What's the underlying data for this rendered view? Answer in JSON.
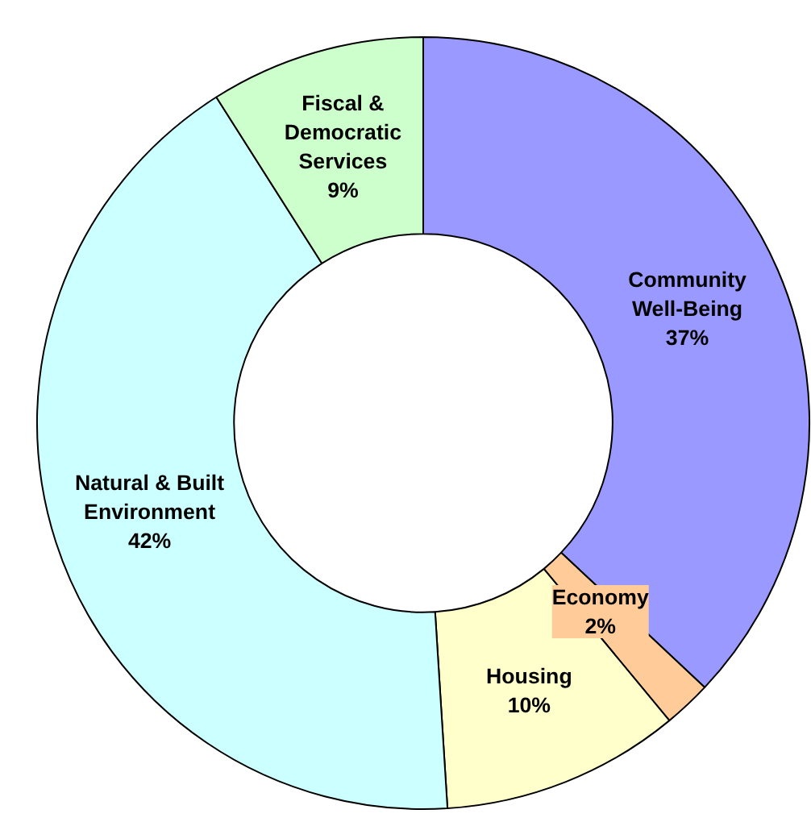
{
  "chart_data": {
    "type": "donut",
    "categories": [
      "Community Well-Being",
      "Economy",
      "Housing",
      "Natural & Built Environment",
      "Fiscal & Democratic Services"
    ],
    "values": [
      37,
      2,
      10,
      42,
      9
    ],
    "value_labels": [
      "37%",
      "2%",
      "10%",
      "42%",
      "9%"
    ],
    "colors": [
      "#9999ff",
      "#ffcc99",
      "#ffffcc",
      "#ccffff",
      "#ccffcc"
    ]
  }
}
